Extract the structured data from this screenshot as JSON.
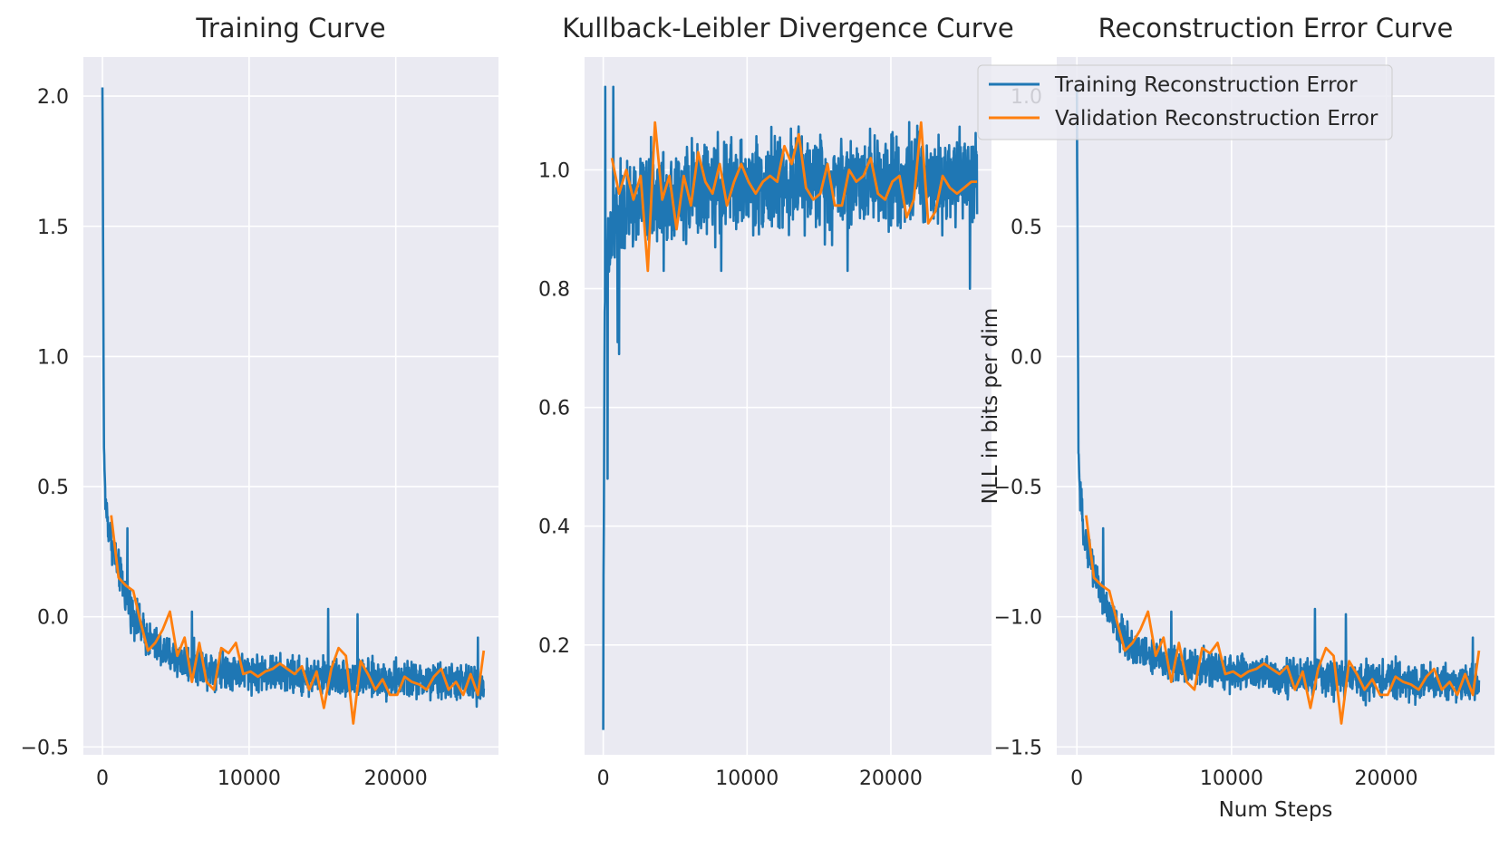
{
  "colors": {
    "background": "#eaeaf2",
    "grid": "#ffffff",
    "training": "#1f77b4",
    "validation": "#ff7f0e"
  },
  "chart_data": [
    {
      "type": "line",
      "title": "Training Curve",
      "xlabel": "",
      "ylabel": "",
      "xlim": [
        -1300,
        27000
      ],
      "ylim": [
        -0.53,
        2.15
      ],
      "xticks": [
        0,
        10000,
        20000
      ],
      "xtick_labels": [
        "0",
        "10000",
        "20000"
      ],
      "yticks": [
        -0.5,
        0.0,
        0.5,
        1.0,
        1.5,
        2.0
      ],
      "ytick_labels": [
        "−0.5",
        "0.0",
        "0.5",
        "1.0",
        "1.5",
        "2.0"
      ],
      "grid": true,
      "legend": "none",
      "series": [
        {
          "kind": "training",
          "steps": 26000,
          "x": [
            0,
            100,
            200,
            400,
            700,
            1000,
            1500,
            2000,
            3000,
            4000,
            5000,
            6000,
            8000,
            10000,
            12000,
            14000,
            16000,
            18000,
            20000,
            22000,
            24000,
            26000
          ],
          "y": [
            2.03,
            0.65,
            0.45,
            0.35,
            0.27,
            0.2,
            0.1,
            0.02,
            -0.08,
            -0.13,
            -0.16,
            -0.18,
            -0.2,
            -0.21,
            -0.22,
            -0.23,
            -0.23,
            -0.24,
            -0.24,
            -0.25,
            -0.25,
            -0.26
          ],
          "noise": 0.055,
          "spikes": [
            [
              15400,
              0.03
            ],
            [
              17400,
              0.01
            ],
            [
              6100,
              0.02
            ],
            [
              1700,
              0.34
            ],
            [
              25600,
              -0.08
            ]
          ]
        },
        {
          "kind": "validation",
          "x": [
            600,
            1100,
            1600,
            2100,
            2600,
            3100,
            3600,
            4100,
            4600,
            5100,
            5600,
            6100,
            6600,
            7100,
            7600,
            8100,
            8600,
            9100,
            9600,
            10100,
            10600,
            11100,
            11600,
            12100,
            12600,
            13100,
            13600,
            14100,
            14600,
            15100,
            15600,
            16100,
            16600,
            17100,
            17600,
            18100,
            18600,
            19100,
            19600,
            20100,
            20600,
            21100,
            21600,
            22100,
            22600,
            23100,
            23600,
            24100,
            24600,
            25100,
            25600,
            26000
          ],
          "y": [
            0.39,
            0.15,
            0.12,
            0.1,
            -0.02,
            -0.13,
            -0.1,
            -0.05,
            0.02,
            -0.15,
            -0.08,
            -0.25,
            -0.1,
            -0.25,
            -0.28,
            -0.12,
            -0.14,
            -0.1,
            -0.22,
            -0.21,
            -0.23,
            -0.21,
            -0.2,
            -0.18,
            -0.2,
            -0.22,
            -0.19,
            -0.28,
            -0.21,
            -0.35,
            -0.2,
            -0.12,
            -0.15,
            -0.41,
            -0.17,
            -0.22,
            -0.28,
            -0.24,
            -0.3,
            -0.3,
            -0.23,
            -0.25,
            -0.26,
            -0.28,
            -0.23,
            -0.2,
            -0.28,
            -0.25,
            -0.3,
            -0.22,
            -0.3,
            -0.13
          ]
        }
      ]
    },
    {
      "type": "line",
      "title": "Kullback-Leibler Divergence Curve",
      "xlabel": "",
      "ylabel": "",
      "xlim": [
        -1300,
        27000
      ],
      "ylim": [
        0.015,
        1.19
      ],
      "xticks": [
        0,
        10000,
        20000
      ],
      "xtick_labels": [
        "0",
        "10000",
        "20000"
      ],
      "yticks": [
        0.2,
        0.4,
        0.6,
        0.8,
        1.0
      ],
      "ytick_labels": [
        "0.2",
        "0.4",
        "0.6",
        "0.8",
        "1.0"
      ],
      "grid": true,
      "legend": "none",
      "series": [
        {
          "kind": "training",
          "steps": 26000,
          "x": [
            0,
            20,
            60,
            100,
            200,
            400,
            700,
            1000,
            2000,
            3000,
            5000,
            8000,
            12000,
            16000,
            20000,
            24000,
            26000
          ],
          "y": [
            0.07,
            0.3,
            0.55,
            0.75,
            0.82,
            0.86,
            0.9,
            0.92,
            0.94,
            0.95,
            0.96,
            0.97,
            0.98,
            0.98,
            0.99,
            0.99,
            0.99
          ],
          "noise": 0.06,
          "spikes": [
            [
              150,
              1.14
            ],
            [
              700,
              1.14
            ],
            [
              1000,
              0.71
            ],
            [
              1100,
              0.69
            ],
            [
              8200,
              0.83
            ],
            [
              25500,
              0.8
            ],
            [
              17000,
              0.83
            ],
            [
              4200,
              0.83
            ],
            [
              300,
              0.48
            ]
          ]
        },
        {
          "kind": "validation",
          "x": [
            600,
            1100,
            1600,
            2100,
            2600,
            3100,
            3600,
            4100,
            4600,
            5100,
            5600,
            6100,
            6600,
            7100,
            7600,
            8100,
            8600,
            9100,
            9600,
            10100,
            10600,
            11100,
            11600,
            12100,
            12600,
            13100,
            13600,
            14100,
            14600,
            15100,
            15600,
            16100,
            16600,
            17100,
            17600,
            18100,
            18600,
            19100,
            19600,
            20100,
            20600,
            21100,
            21600,
            22100,
            22600,
            23100,
            23600,
            24100,
            24600,
            25100,
            25600,
            26000
          ],
          "y": [
            1.02,
            0.96,
            1.0,
            0.95,
            0.99,
            0.83,
            1.08,
            0.95,
            0.99,
            0.9,
            0.99,
            0.94,
            1.03,
            0.98,
            0.96,
            1.01,
            0.94,
            0.98,
            1.01,
            0.98,
            0.96,
            0.98,
            0.99,
            0.98,
            1.04,
            1.01,
            1.06,
            0.97,
            0.95,
            0.96,
            1.01,
            0.94,
            0.94,
            1.0,
            0.98,
            0.99,
            1.02,
            0.96,
            0.95,
            0.98,
            0.99,
            0.92,
            0.95,
            1.08,
            0.91,
            0.93,
            0.99,
            0.97,
            0.96,
            0.97,
            0.98,
            0.98
          ]
        }
      ]
    },
    {
      "type": "line",
      "title": "Reconstruction Error Curve",
      "xlabel": "Num Steps",
      "ylabel": "NLL in bits per dim",
      "xlim": [
        -1300,
        27000
      ],
      "ylim": [
        -1.53,
        1.15
      ],
      "xticks": [
        0,
        10000,
        20000
      ],
      "xtick_labels": [
        "0",
        "10000",
        "20000"
      ],
      "yticks": [
        -1.5,
        -1.0,
        -0.5,
        0.0,
        0.5,
        1.0
      ],
      "ytick_labels": [
        "−1.5",
        "−1.0",
        "−0.5",
        "0.0",
        "0.5",
        "1.0"
      ],
      "grid": true,
      "legend": "top-right",
      "legend_entries": [
        "Training Reconstruction Error",
        "Validation Reconstruction Error"
      ],
      "series": [
        {
          "kind": "training",
          "name": "Training Reconstruction Error",
          "steps": 26000,
          "x": [
            0,
            100,
            200,
            400,
            700,
            1000,
            1500,
            2000,
            3000,
            4000,
            5000,
            6000,
            8000,
            10000,
            12000,
            14000,
            16000,
            18000,
            20000,
            22000,
            24000,
            26000
          ],
          "y": [
            1.03,
            -0.35,
            -0.55,
            -0.65,
            -0.73,
            -0.8,
            -0.9,
            -0.98,
            -1.08,
            -1.13,
            -1.16,
            -1.18,
            -1.2,
            -1.21,
            -1.22,
            -1.23,
            -1.23,
            -1.24,
            -1.24,
            -1.25,
            -1.25,
            -1.26
          ],
          "noise": 0.055,
          "spikes": [
            [
              15400,
              -0.97
            ],
            [
              17400,
              -0.99
            ],
            [
              6100,
              -0.98
            ],
            [
              1700,
              -0.66
            ],
            [
              25600,
              -1.08
            ]
          ]
        },
        {
          "kind": "validation",
          "name": "Validation Reconstruction Error",
          "x": [
            600,
            1100,
            1600,
            2100,
            2600,
            3100,
            3600,
            4100,
            4600,
            5100,
            5600,
            6100,
            6600,
            7100,
            7600,
            8100,
            8600,
            9100,
            9600,
            10100,
            10600,
            11100,
            11600,
            12100,
            12600,
            13100,
            13600,
            14100,
            14600,
            15100,
            15600,
            16100,
            16600,
            17100,
            17600,
            18100,
            18600,
            19100,
            19600,
            20100,
            20600,
            21100,
            21600,
            22100,
            22600,
            23100,
            23600,
            24100,
            24600,
            25100,
            25600,
            26000
          ],
          "y": [
            -0.61,
            -0.85,
            -0.88,
            -0.9,
            -1.02,
            -1.13,
            -1.1,
            -1.05,
            -0.98,
            -1.15,
            -1.08,
            -1.25,
            -1.1,
            -1.25,
            -1.28,
            -1.12,
            -1.14,
            -1.1,
            -1.22,
            -1.21,
            -1.23,
            -1.21,
            -1.2,
            -1.18,
            -1.2,
            -1.22,
            -1.19,
            -1.28,
            -1.21,
            -1.35,
            -1.2,
            -1.12,
            -1.15,
            -1.41,
            -1.17,
            -1.22,
            -1.28,
            -1.24,
            -1.3,
            -1.3,
            -1.23,
            -1.25,
            -1.26,
            -1.28,
            -1.23,
            -1.2,
            -1.28,
            -1.25,
            -1.3,
            -1.22,
            -1.3,
            -1.13
          ]
        }
      ]
    }
  ]
}
